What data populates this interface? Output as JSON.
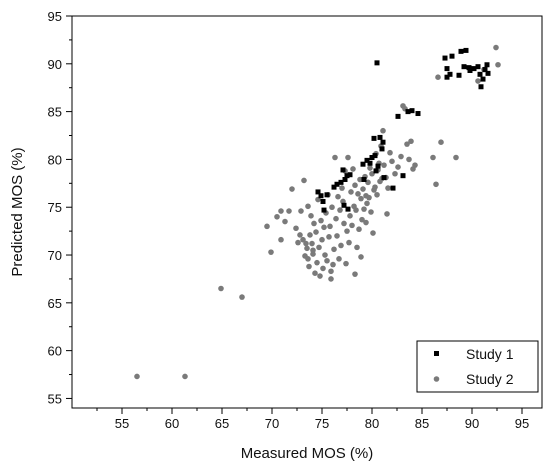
{
  "chart_data": {
    "type": "scatter",
    "title": "",
    "xlabel": "Measured MOS (%)",
    "ylabel": "Predicted MOS (%)",
    "xlim": [
      50,
      97
    ],
    "ylim": [
      54,
      95
    ],
    "xticks": [
      55,
      60,
      65,
      70,
      75,
      80,
      85,
      90,
      95
    ],
    "yticks": [
      55,
      60,
      65,
      70,
      75,
      80,
      85,
      90,
      95
    ],
    "grid": false,
    "legend_position": "bottom-right",
    "series": [
      {
        "name": "Study 1",
        "marker": "square",
        "color": "#000000",
        "points": [
          [
            80.5,
            90.1
          ],
          [
            87.3,
            90.6
          ],
          [
            87.5,
            89.5
          ],
          [
            87.8,
            88.9
          ],
          [
            88.0,
            90.8
          ],
          [
            88.7,
            88.8
          ],
          [
            88.9,
            91.3
          ],
          [
            89.2,
            89.7
          ],
          [
            89.4,
            91.4
          ],
          [
            89.8,
            89.3
          ],
          [
            90.2,
            89.5
          ],
          [
            90.6,
            89.7
          ],
          [
            90.8,
            88.9
          ],
          [
            90.9,
            87.6
          ],
          [
            91.1,
            88.4
          ],
          [
            91.3,
            89.4
          ],
          [
            91.5,
            89.9
          ],
          [
            91.6,
            89.0
          ],
          [
            87.5,
            88.6
          ],
          [
            89.7,
            89.6
          ],
          [
            74.6,
            76.6
          ],
          [
            74.9,
            76.2
          ],
          [
            75.1,
            75.6
          ],
          [
            75.2,
            74.7
          ],
          [
            75.5,
            76.3
          ],
          [
            76.2,
            77.1
          ],
          [
            76.5,
            77.4
          ],
          [
            76.9,
            77.6
          ],
          [
            77.1,
            78.9
          ],
          [
            77.3,
            77.9
          ],
          [
            77.5,
            78.3
          ],
          [
            77.8,
            78.4
          ],
          [
            77.2,
            75.2
          ],
          [
            77.6,
            74.8
          ],
          [
            79.1,
            79.5
          ],
          [
            79.5,
            79.9
          ],
          [
            79.8,
            79.6
          ],
          [
            80.0,
            80.2
          ],
          [
            80.2,
            82.2
          ],
          [
            80.3,
            80.4
          ],
          [
            80.4,
            78.8
          ],
          [
            80.6,
            79.3
          ],
          [
            80.8,
            82.3
          ],
          [
            81.0,
            81.1
          ],
          [
            81.1,
            81.8
          ],
          [
            81.2,
            78.1
          ],
          [
            82.1,
            77.0
          ],
          [
            82.6,
            84.5
          ],
          [
            83.6,
            85.0
          ],
          [
            84.0,
            85.1
          ],
          [
            84.6,
            84.8
          ],
          [
            83.1,
            78.3
          ],
          [
            79.2,
            77.9
          ]
        ]
      },
      {
        "name": "Study 2",
        "marker": "circle",
        "color": "#7a7a7a",
        "points": [
          [
            56.5,
            57.3
          ],
          [
            61.3,
            57.3
          ],
          [
            64.9,
            66.5
          ],
          [
            67.0,
            65.6
          ],
          [
            69.5,
            73.0
          ],
          [
            69.9,
            70.3
          ],
          [
            70.5,
            74.0
          ],
          [
            70.9,
            74.6
          ],
          [
            71.3,
            73.5
          ],
          [
            71.7,
            74.6
          ],
          [
            72.0,
            76.9
          ],
          [
            72.4,
            72.8
          ],
          [
            72.6,
            71.3
          ],
          [
            72.9,
            74.6
          ],
          [
            73.1,
            71.6
          ],
          [
            73.2,
            77.8
          ],
          [
            73.4,
            71.2
          ],
          [
            73.5,
            70.7
          ],
          [
            73.6,
            69.6
          ],
          [
            73.7,
            68.8
          ],
          [
            73.8,
            72.1
          ],
          [
            73.9,
            74.1
          ],
          [
            74.0,
            71.2
          ],
          [
            74.1,
            70.1
          ],
          [
            74.2,
            73.3
          ],
          [
            74.3,
            68.1
          ],
          [
            74.4,
            72.4
          ],
          [
            74.5,
            69.2
          ],
          [
            74.6,
            75.8
          ],
          [
            74.7,
            70.8
          ],
          [
            74.8,
            67.8
          ],
          [
            74.9,
            73.6
          ],
          [
            75.0,
            71.6
          ],
          [
            75.1,
            68.6
          ],
          [
            75.2,
            72.9
          ],
          [
            75.3,
            70.0
          ],
          [
            75.4,
            74.4
          ],
          [
            75.5,
            69.4
          ],
          [
            75.6,
            76.3
          ],
          [
            75.7,
            71.9
          ],
          [
            75.8,
            73.0
          ],
          [
            75.9,
            68.3
          ],
          [
            76.0,
            75.0
          ],
          [
            76.2,
            70.6
          ],
          [
            76.3,
            80.2
          ],
          [
            76.4,
            73.8
          ],
          [
            76.5,
            72.0
          ],
          [
            76.6,
            76.1
          ],
          [
            76.7,
            69.6
          ],
          [
            76.8,
            74.7
          ],
          [
            76.9,
            71.0
          ],
          [
            77.0,
            77.0
          ],
          [
            77.1,
            75.6
          ],
          [
            77.2,
            73.3
          ],
          [
            77.3,
            78.8
          ],
          [
            77.4,
            69.1
          ],
          [
            77.5,
            72.5
          ],
          [
            77.6,
            80.2
          ],
          [
            77.7,
            71.3
          ],
          [
            77.8,
            74.1
          ],
          [
            77.9,
            76.6
          ],
          [
            78.0,
            73.1
          ],
          [
            78.1,
            79.0
          ],
          [
            78.2,
            75.1
          ],
          [
            78.3,
            77.3
          ],
          [
            78.4,
            74.7
          ],
          [
            78.5,
            70.8
          ],
          [
            78.6,
            76.4
          ],
          [
            78.7,
            72.7
          ],
          [
            78.8,
            77.9
          ],
          [
            78.9,
            75.9
          ],
          [
            79.0,
            73.7
          ],
          [
            79.1,
            76.9
          ],
          [
            79.2,
            74.8
          ],
          [
            79.3,
            78.2
          ],
          [
            79.4,
            76.2
          ],
          [
            79.5,
            75.4
          ],
          [
            79.6,
            77.6
          ],
          [
            79.7,
            76.0
          ],
          [
            79.8,
            79.1
          ],
          [
            79.9,
            74.5
          ],
          [
            80.0,
            78.5
          ],
          [
            80.1,
            72.3
          ],
          [
            80.2,
            76.8
          ],
          [
            80.3,
            77.1
          ],
          [
            80.4,
            80.6
          ],
          [
            80.5,
            76.3
          ],
          [
            80.6,
            78.9
          ],
          [
            80.7,
            79.6
          ],
          [
            80.8,
            77.7
          ],
          [
            80.9,
            81.4
          ],
          [
            81.0,
            78.0
          ],
          [
            81.1,
            83.0
          ],
          [
            81.2,
            79.4
          ],
          [
            81.4,
            78.1
          ],
          [
            81.6,
            77.0
          ],
          [
            81.8,
            80.7
          ],
          [
            82.0,
            79.8
          ],
          [
            82.3,
            78.5
          ],
          [
            82.6,
            79.2
          ],
          [
            82.9,
            80.3
          ],
          [
            83.1,
            85.6
          ],
          [
            83.3,
            85.3
          ],
          [
            83.5,
            81.6
          ],
          [
            83.7,
            80.0
          ],
          [
            83.9,
            81.9
          ],
          [
            84.1,
            79.0
          ],
          [
            84.3,
            79.4
          ],
          [
            86.1,
            80.2
          ],
          [
            86.4,
            77.4
          ],
          [
            86.6,
            88.6
          ],
          [
            86.9,
            81.8
          ],
          [
            88.4,
            80.2
          ],
          [
            90.6,
            88.2
          ],
          [
            91.2,
            89.4
          ],
          [
            92.4,
            91.7
          ],
          [
            92.6,
            89.9
          ],
          [
            73.3,
            69.9
          ],
          [
            74.1,
            70.5
          ],
          [
            75.9,
            67.5
          ],
          [
            76.1,
            69.0
          ],
          [
            78.3,
            68.0
          ],
          [
            78.9,
            69.8
          ],
          [
            79.4,
            73.4
          ],
          [
            81.5,
            74.3
          ],
          [
            73.6,
            75.1
          ],
          [
            72.8,
            72.1
          ],
          [
            70.9,
            71.6
          ]
        ]
      }
    ]
  }
}
